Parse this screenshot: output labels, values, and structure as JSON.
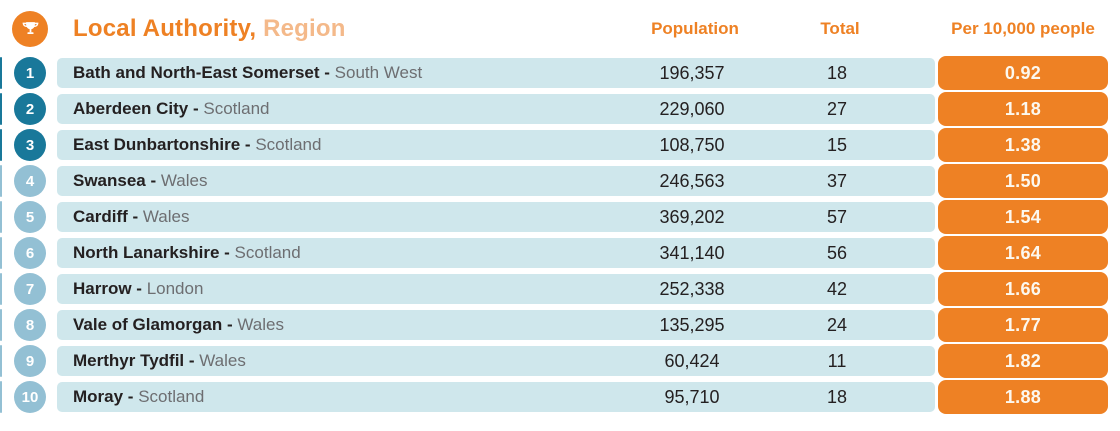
{
  "header": {
    "icon": "trophy-icon",
    "title_primary": "Local Authority,",
    "title_secondary": "Region",
    "col_population": "Population",
    "col_total": "Total",
    "col_per10k": "Per 10,000 people"
  },
  "separator": " - ",
  "colors": {
    "accent_orange": "#ee8124",
    "pale_orange": "#f4b98a",
    "rank_dark_teal": "#19789a",
    "rank_light_blue": "#93c0d4",
    "row_band_blue": "#cfe7ec",
    "text_dark": "#242021",
    "text_gray": "#6d6e71",
    "badge_text": "#fcf8ef"
  },
  "chart_data": {
    "type": "table",
    "title": "Local Authority, Region",
    "columns": [
      "Rank",
      "Local Authority",
      "Region",
      "Population",
      "Total",
      "Per 10,000 people"
    ],
    "rows": [
      {
        "rank": 1,
        "authority": "Bath and North-East Somerset",
        "region": "South West",
        "population": "196,357",
        "total": "18",
        "per_10000": "0.92",
        "tier": "dark"
      },
      {
        "rank": 2,
        "authority": "Aberdeen City",
        "region": "Scotland",
        "population": "229,060",
        "total": "27",
        "per_10000": "1.18",
        "tier": "dark"
      },
      {
        "rank": 3,
        "authority": "East Dunbartonshire",
        "region": "Scotland",
        "population": "108,750",
        "total": "15",
        "per_10000": "1.38",
        "tier": "dark"
      },
      {
        "rank": 4,
        "authority": "Swansea",
        "region": "Wales",
        "population": "246,563",
        "total": "37",
        "per_10000": "1.50",
        "tier": "light"
      },
      {
        "rank": 5,
        "authority": "Cardiff",
        "region": "Wales",
        "population": "369,202",
        "total": "57",
        "per_10000": "1.54",
        "tier": "light"
      },
      {
        "rank": 6,
        "authority": "North Lanarkshire",
        "region": "Scotland",
        "population": "341,140",
        "total": "56",
        "per_10000": "1.64",
        "tier": "light"
      },
      {
        "rank": 7,
        "authority": "Harrow",
        "region": "London",
        "population": "252,338",
        "total": "42",
        "per_10000": "1.66",
        "tier": "light"
      },
      {
        "rank": 8,
        "authority": "Vale of Glamorgan",
        "region": "Wales",
        "population": "135,295",
        "total": "24",
        "per_10000": "1.77",
        "tier": "light"
      },
      {
        "rank": 9,
        "authority": "Merthyr Tydfil",
        "region": "Wales",
        "population": "60,424",
        "total": "11",
        "per_10000": "1.82",
        "tier": "light"
      },
      {
        "rank": 10,
        "authority": "Moray",
        "region": "Scotland",
        "population": "95,710",
        "total": "18",
        "per_10000": "1.88",
        "tier": "light"
      }
    ]
  }
}
